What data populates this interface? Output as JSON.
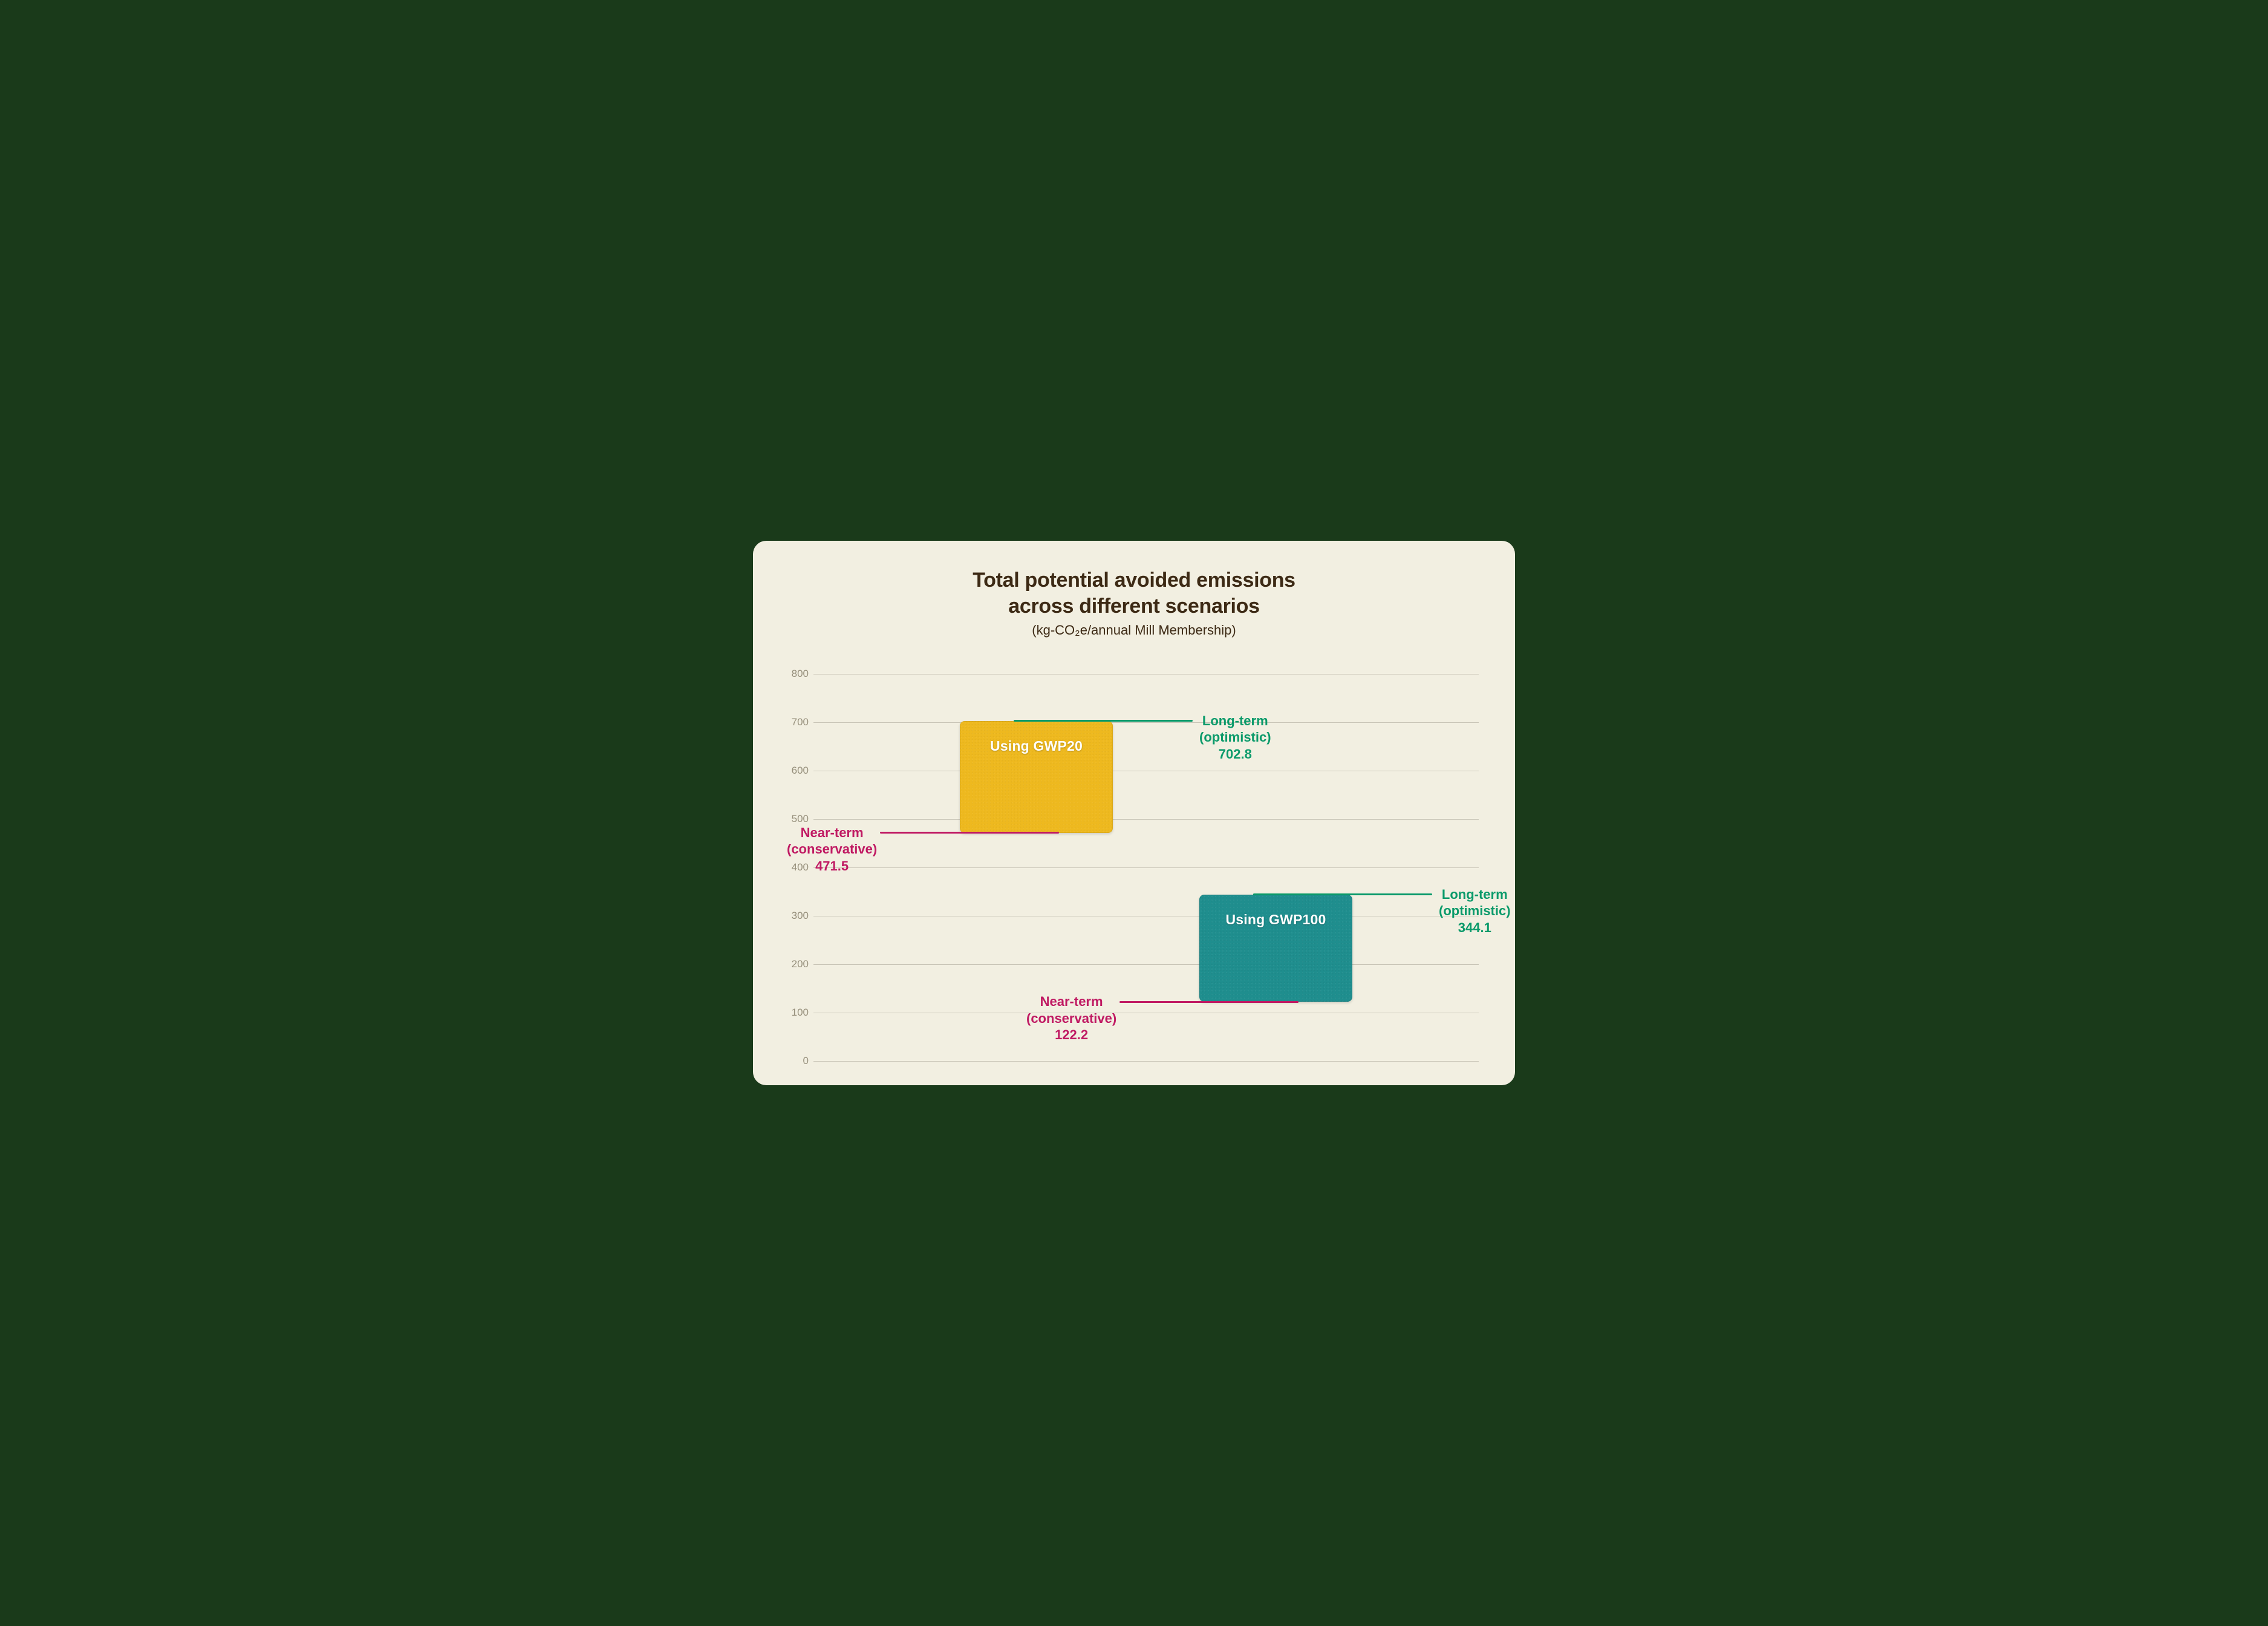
{
  "title_line1": "Total potential avoided emissions",
  "title_line2": "across different scenarios",
  "subtitle": "(kg-CO₂e/annual Mill Membership)",
  "background_color": "#f2efe1",
  "grid_color": "#c8c4b6",
  "tick_color": "#968f7b",
  "title_color": "#3d2a15",
  "ylim_min": 0,
  "ylim_max": 800,
  "ytick_step": 100,
  "yticks": [
    "0",
    "100",
    "200",
    "300",
    "400",
    "500",
    "600",
    "700",
    "800"
  ],
  "near_term_color": "#c01a63",
  "long_term_color": "#0a9a6a",
  "near_term_label_1": "Near-term",
  "near_term_label_2": "(conservative)",
  "long_term_label_1": "Long-term",
  "long_term_label_2": "(optimistic)",
  "bars": {
    "gwp20": {
      "label": "Using GWP20",
      "color": "#eeb91f",
      "low": 471.5,
      "high": 702.8,
      "low_text": "471.5",
      "high_text": "702.8",
      "x_pct": 22,
      "width_pct": 23
    },
    "gwp100": {
      "label": "Using GWP100",
      "color": "#1f8e8e",
      "low": 122.2,
      "high": 344.1,
      "low_text": "122.2",
      "high_text": "344.1",
      "x_pct": 58,
      "width_pct": 23
    }
  }
}
